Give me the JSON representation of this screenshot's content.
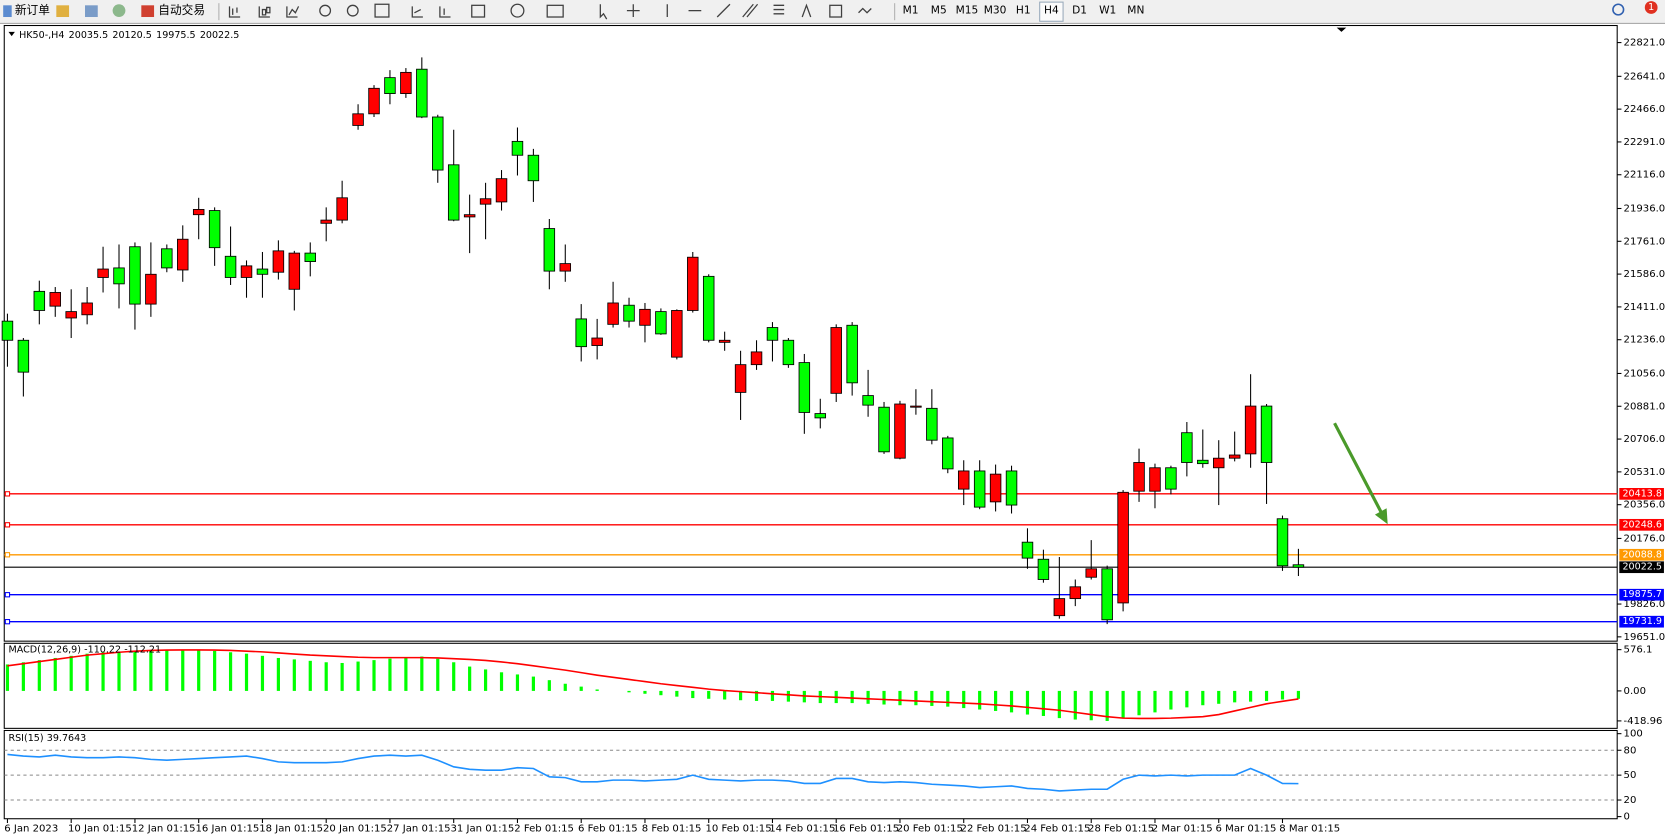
{
  "toolbar": {
    "new_order": "新订单",
    "auto_trading": "自动交易",
    "timeframes": [
      "M1",
      "M5",
      "M15",
      "M30",
      "H1",
      "H4",
      "D1",
      "W1",
      "MN"
    ],
    "active_timeframe": "H4",
    "notifications": 1
  },
  "chart_data": [
    {
      "type": "candlestick",
      "symbol": "HK50-,H4",
      "categories": [
        "6 Jan 2023",
        null,
        null,
        null,
        "10 Jan 01:15",
        null,
        null,
        null,
        "12 Jan 01:15",
        null,
        null,
        null,
        "16 Jan 01:15",
        null,
        null,
        null,
        "18 Jan 01:15",
        null,
        null,
        null,
        "20 Jan 01:15",
        null,
        null,
        null,
        "27 Jan 01:15",
        null,
        null,
        null,
        "31 Jan 01:15",
        null,
        null,
        null,
        "2 Feb 01:15",
        null,
        null,
        null,
        "6 Feb 01:15",
        null,
        null,
        null,
        "8 Feb 01:15",
        null,
        null,
        null,
        "10 Feb 01:15",
        null,
        null,
        null,
        "14 Feb 01:15",
        null,
        null,
        null,
        "16 Feb 01:15",
        null,
        null,
        null,
        "20 Feb 01:15",
        null,
        null,
        null,
        "22 Feb 01:15",
        null,
        null,
        null,
        "24 Feb 01:15",
        null,
        null,
        null,
        "28 Feb 01:15",
        null,
        null,
        null,
        "2 Mar 01:15",
        null,
        null,
        null,
        "6 Mar 01:15",
        null,
        null,
        null,
        "8 Mar 01:15",
        null
      ],
      "open": [
        21335,
        21233,
        21494,
        21415,
        21352,
        21369,
        21568,
        21619,
        21732,
        21426,
        21721,
        21608,
        21903,
        21925,
        21681,
        21568,
        21613,
        21596,
        21505,
        21698,
        21857,
        21874,
        22379,
        22441,
        22634,
        22549,
        22679,
        22424,
        22169,
        21891,
        21959,
        21971,
        22294,
        22220,
        21829,
        21602,
        21347,
        21205,
        21318,
        21420,
        21313,
        21386,
        21143,
        21392,
        21574,
        21222,
        20955,
        21103,
        21301,
        21233,
        21114,
        20842,
        20950,
        21313,
        20938,
        20876,
        20604,
        20876,
        20870,
        20712,
        20439,
        20536,
        20371,
        20536,
        20156,
        20065,
        19764,
        19855,
        19969,
        20014,
        19832,
        20428,
        20428,
        20553,
        20740,
        20593,
        20553,
        20604,
        20627,
        20882,
        20281,
        20035.5
      ],
      "high": [
        21375,
        21245,
        21551,
        21517,
        21505,
        21517,
        21732,
        21744,
        21755,
        21755,
        21744,
        21846,
        21993,
        21942,
        21840,
        21659,
        21704,
        21766,
        21710,
        21755,
        21942,
        22084,
        22492,
        22594,
        22674,
        22685,
        22742,
        22436,
        22356,
        22010,
        22073,
        22141,
        22368,
        22254,
        21880,
        21744,
        21426,
        21347,
        21545,
        21460,
        21432,
        21403,
        21398,
        21704,
        21585,
        21279,
        21177,
        21233,
        21330,
        21245,
        21160,
        20921,
        21318,
        21330,
        21075,
        20904,
        20910,
        20972,
        20972,
        20723,
        20593,
        20593,
        20570,
        20564,
        20230,
        20116,
        20077,
        19957,
        20167,
        20031,
        20434,
        20655,
        20575,
        20564,
        20797,
        20757,
        20700,
        20746,
        21052,
        20893,
        20298,
        20120.5
      ],
      "low": [
        21092,
        20933,
        21318,
        21358,
        21245,
        21318,
        21488,
        21403,
        21290,
        21358,
        21596,
        21545,
        21772,
        21630,
        21528,
        21460,
        21460,
        21557,
        21392,
        21574,
        21761,
        21857,
        22356,
        22424,
        22492,
        22526,
        22418,
        22073,
        21868,
        21698,
        21772,
        21925,
        22112,
        21971,
        21505,
        21545,
        21120,
        21131,
        21301,
        21301,
        21222,
        21262,
        21131,
        21381,
        21222,
        21177,
        20808,
        21075,
        21120,
        21086,
        20734,
        20763,
        20904,
        20938,
        20825,
        20627,
        20598,
        20836,
        20678,
        20524,
        20354,
        20332,
        20320,
        20309,
        20014,
        19940,
        19748,
        19815,
        19957,
        19719,
        19787,
        20371,
        20337,
        20411,
        20507,
        20553,
        20354,
        20587,
        20553,
        20360,
        20003,
        19975.5
      ],
      "close": [
        21233,
        21063,
        21392,
        21488,
        21386,
        21432,
        21613,
        21534,
        21426,
        21585,
        21619,
        21772,
        21931,
        21727,
        21568,
        21630,
        21585,
        21710,
        21698,
        21653,
        21874,
        21993,
        22441,
        22577,
        22549,
        22662,
        22424,
        22141,
        21874,
        21903,
        21988,
        22095,
        22220,
        22084,
        21602,
        21642,
        21199,
        21245,
        21432,
        21335,
        21398,
        21267,
        21392,
        21676,
        21233,
        21233,
        21103,
        21171,
        21233,
        21103,
        20848,
        20819,
        21301,
        21006,
        20887,
        20638,
        20893,
        20882,
        20700,
        20547,
        20536,
        20343,
        20519,
        20354,
        20071,
        19957,
        19855,
        19918,
        20014,
        19742,
        20422,
        20581,
        20553,
        20439,
        20581,
        20575,
        20604,
        20621,
        20882,
        20581,
        20030,
        20022.5
      ],
      "up_color": "#ff0000",
      "down_color": "#00ff00",
      "ylim": [
        19628,
        22912
      ],
      "yticks": [
        {
          "value": 22821,
          "label": "22821.0"
        },
        {
          "value": 22641,
          "label": "22641.0"
        },
        {
          "value": 22466,
          "label": "22466.0"
        },
        {
          "value": 22291,
          "label": "22291.0"
        },
        {
          "value": 22116,
          "label": "22116.0"
        },
        {
          "value": 21936,
          "label": "21936.0"
        },
        {
          "value": 21761,
          "label": "21761.0"
        },
        {
          "value": 21586,
          "label": "21586.0"
        },
        {
          "value": 21411,
          "label": "21411.0"
        },
        {
          "value": 21236,
          "label": "21236.0"
        },
        {
          "value": 21056,
          "label": "21056.0"
        },
        {
          "value": 20881,
          "label": "20881.0"
        },
        {
          "value": 20706,
          "label": "20706.0"
        },
        {
          "value": 20531,
          "label": "20531.0"
        },
        {
          "value": 20356,
          "label": "20356.0"
        },
        {
          "value": 20176,
          "label": "20176.0"
        },
        {
          "value": 19826,
          "label": "19826.0"
        },
        {
          "value": 19651,
          "label": "19651.0"
        }
      ],
      "levels": [
        {
          "value": 20413.8,
          "color": "#ff0000"
        },
        {
          "value": 20248.6,
          "color": "#ff0000"
        },
        {
          "value": 20088.8,
          "color": "#ff9900"
        },
        {
          "value": 19875.7,
          "color": "#0000ff"
        },
        {
          "value": 19731.9,
          "color": "#0000ff"
        }
      ]
    },
    {
      "type": "macd",
      "name": "MACD(12,26,9)",
      "histogram": [
        370,
        400,
        430,
        460,
        490,
        520,
        540,
        550,
        560,
        570,
        576,
        570,
        565,
        560,
        540,
        520,
        490,
        460,
        440,
        420,
        400,
        390,
        410,
        430,
        450,
        470,
        480,
        450,
        400,
        340,
        300,
        260,
        230,
        200,
        150,
        100,
        60,
        20,
        0,
        -20,
        -40,
        -60,
        -80,
        -100,
        -110,
        -120,
        -130,
        -140,
        -140,
        -150,
        -160,
        -170,
        -170,
        -170,
        -180,
        -190,
        -200,
        -200,
        -210,
        -220,
        -240,
        -260,
        -280,
        -300,
        -330,
        -350,
        -380,
        -400,
        -410,
        -420,
        -380,
        -340,
        -300,
        -260,
        -230,
        -200,
        -180,
        -160,
        -150,
        -140,
        -120,
        -110.22
      ],
      "signal": [
        350,
        380,
        410,
        440,
        470,
        500,
        520,
        540,
        555,
        565,
        570,
        572,
        572,
        570,
        565,
        555,
        545,
        530,
        515,
        500,
        490,
        480,
        470,
        465,
        465,
        465,
        465,
        460,
        450,
        440,
        425,
        405,
        380,
        350,
        320,
        290,
        255,
        220,
        190,
        160,
        130,
        100,
        75,
        50,
        25,
        5,
        -10,
        -25,
        -40,
        -55,
        -70,
        -80,
        -90,
        -100,
        -110,
        -120,
        -130,
        -140,
        -150,
        -160,
        -170,
        -180,
        -195,
        -210,
        -230,
        -250,
        -270,
        -300,
        -330,
        -360,
        -380,
        -385,
        -385,
        -380,
        -370,
        -360,
        -330,
        -280,
        -230,
        -180,
        -145,
        -112.21
      ],
      "histogram_color": "#00ff00",
      "signal_color": "#ff0000",
      "ylim": [
        -523,
        665
      ],
      "yticks": [
        576.1,
        {
          "value": 0,
          "label": "0.00"
        },
        -418.96
      ]
    },
    {
      "type": "line",
      "name": "RSI(15)",
      "values": [
        75,
        73,
        72,
        74,
        72,
        71,
        71,
        72,
        71,
        69,
        68,
        69,
        70,
        71,
        72,
        73,
        70,
        66,
        65,
        65,
        65,
        66,
        70,
        73,
        74,
        73,
        74,
        68,
        60,
        57,
        56,
        56,
        59,
        58,
        48,
        47,
        42,
        42,
        44,
        44,
        43,
        44,
        45,
        50,
        45,
        44,
        43,
        44,
        44,
        43,
        40,
        40,
        46,
        46,
        42,
        41,
        42,
        41,
        39,
        38,
        37,
        35,
        36,
        37,
        34,
        33,
        31,
        32,
        33,
        33,
        45,
        50,
        49,
        50,
        49,
        50,
        50,
        50,
        58,
        50,
        40,
        39.7643
      ],
      "color": "#1e90ff",
      "ylim": [
        0,
        100
      ],
      "yticks": [
        100,
        80,
        50,
        20,
        0
      ]
    }
  ]
}
